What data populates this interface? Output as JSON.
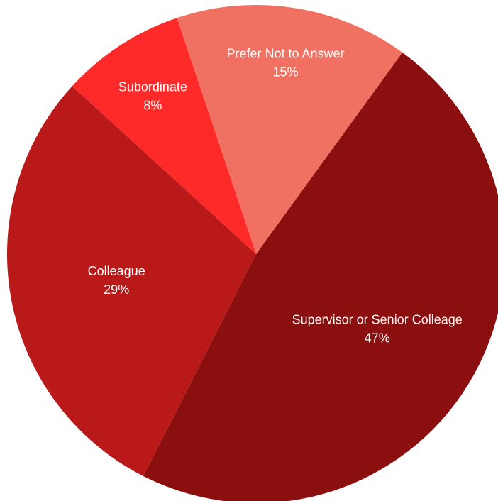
{
  "chart_data": {
    "type": "pie",
    "title": "",
    "slices": [
      {
        "label": "Prefer Not to Answer",
        "value": 15,
        "value_label": "15%",
        "color": "#f07062"
      },
      {
        "label": "Subordinate",
        "value": 8,
        "value_label": "8%",
        "color": "#fe2a2a"
      },
      {
        "label": "Colleague",
        "value": 29,
        "value_label": "29%",
        "color": "#b91a19"
      },
      {
        "label": "Supervisor or Senior  Colleage",
        "value": 47,
        "value_label": "47%",
        "color": "#8a0f0e"
      }
    ],
    "legend": "none",
    "data_labels": "inside"
  }
}
